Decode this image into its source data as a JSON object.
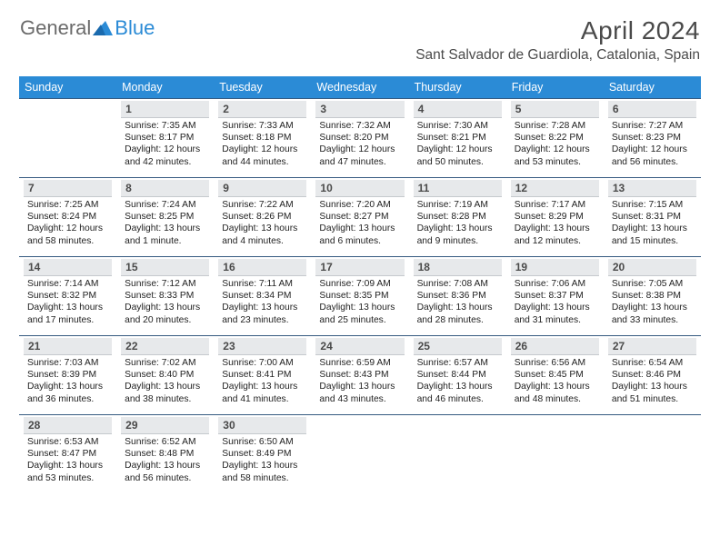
{
  "logo": {
    "gen": "General",
    "blue": "Blue"
  },
  "title": "April 2024",
  "location": "Sant Salvador de Guardiola, Catalonia, Spain",
  "colors": {
    "header_bg": "#2b8bd6",
    "header_fg": "#ffffff",
    "day_num_bg": "#e7e9eb",
    "cell_border": "#355a80",
    "logo_gray": "#6b6b6b",
    "logo_blue": "#2b8bd6",
    "title_color": "#4a4a4a"
  },
  "typography": {
    "title_size": 28,
    "location_size": 15.5,
    "weekday_size": 12.5,
    "daynum_size": 12,
    "body_size": 10.3
  },
  "weekdays": [
    "Sunday",
    "Monday",
    "Tuesday",
    "Wednesday",
    "Thursday",
    "Friday",
    "Saturday"
  ],
  "weeks": [
    [
      {
        "day": "",
        "sunrise": "",
        "sunset": "",
        "daylight": ""
      },
      {
        "day": "1",
        "sunrise": "Sunrise: 7:35 AM",
        "sunset": "Sunset: 8:17 PM",
        "daylight": "Daylight: 12 hours and 42 minutes."
      },
      {
        "day": "2",
        "sunrise": "Sunrise: 7:33 AM",
        "sunset": "Sunset: 8:18 PM",
        "daylight": "Daylight: 12 hours and 44 minutes."
      },
      {
        "day": "3",
        "sunrise": "Sunrise: 7:32 AM",
        "sunset": "Sunset: 8:20 PM",
        "daylight": "Daylight: 12 hours and 47 minutes."
      },
      {
        "day": "4",
        "sunrise": "Sunrise: 7:30 AM",
        "sunset": "Sunset: 8:21 PM",
        "daylight": "Daylight: 12 hours and 50 minutes."
      },
      {
        "day": "5",
        "sunrise": "Sunrise: 7:28 AM",
        "sunset": "Sunset: 8:22 PM",
        "daylight": "Daylight: 12 hours and 53 minutes."
      },
      {
        "day": "6",
        "sunrise": "Sunrise: 7:27 AM",
        "sunset": "Sunset: 8:23 PM",
        "daylight": "Daylight: 12 hours and 56 minutes."
      }
    ],
    [
      {
        "day": "7",
        "sunrise": "Sunrise: 7:25 AM",
        "sunset": "Sunset: 8:24 PM",
        "daylight": "Daylight: 12 hours and 58 minutes."
      },
      {
        "day": "8",
        "sunrise": "Sunrise: 7:24 AM",
        "sunset": "Sunset: 8:25 PM",
        "daylight": "Daylight: 13 hours and 1 minute."
      },
      {
        "day": "9",
        "sunrise": "Sunrise: 7:22 AM",
        "sunset": "Sunset: 8:26 PM",
        "daylight": "Daylight: 13 hours and 4 minutes."
      },
      {
        "day": "10",
        "sunrise": "Sunrise: 7:20 AM",
        "sunset": "Sunset: 8:27 PM",
        "daylight": "Daylight: 13 hours and 6 minutes."
      },
      {
        "day": "11",
        "sunrise": "Sunrise: 7:19 AM",
        "sunset": "Sunset: 8:28 PM",
        "daylight": "Daylight: 13 hours and 9 minutes."
      },
      {
        "day": "12",
        "sunrise": "Sunrise: 7:17 AM",
        "sunset": "Sunset: 8:29 PM",
        "daylight": "Daylight: 13 hours and 12 minutes."
      },
      {
        "day": "13",
        "sunrise": "Sunrise: 7:15 AM",
        "sunset": "Sunset: 8:31 PM",
        "daylight": "Daylight: 13 hours and 15 minutes."
      }
    ],
    [
      {
        "day": "14",
        "sunrise": "Sunrise: 7:14 AM",
        "sunset": "Sunset: 8:32 PM",
        "daylight": "Daylight: 13 hours and 17 minutes."
      },
      {
        "day": "15",
        "sunrise": "Sunrise: 7:12 AM",
        "sunset": "Sunset: 8:33 PM",
        "daylight": "Daylight: 13 hours and 20 minutes."
      },
      {
        "day": "16",
        "sunrise": "Sunrise: 7:11 AM",
        "sunset": "Sunset: 8:34 PM",
        "daylight": "Daylight: 13 hours and 23 minutes."
      },
      {
        "day": "17",
        "sunrise": "Sunrise: 7:09 AM",
        "sunset": "Sunset: 8:35 PM",
        "daylight": "Daylight: 13 hours and 25 minutes."
      },
      {
        "day": "18",
        "sunrise": "Sunrise: 7:08 AM",
        "sunset": "Sunset: 8:36 PM",
        "daylight": "Daylight: 13 hours and 28 minutes."
      },
      {
        "day": "19",
        "sunrise": "Sunrise: 7:06 AM",
        "sunset": "Sunset: 8:37 PM",
        "daylight": "Daylight: 13 hours and 31 minutes."
      },
      {
        "day": "20",
        "sunrise": "Sunrise: 7:05 AM",
        "sunset": "Sunset: 8:38 PM",
        "daylight": "Daylight: 13 hours and 33 minutes."
      }
    ],
    [
      {
        "day": "21",
        "sunrise": "Sunrise: 7:03 AM",
        "sunset": "Sunset: 8:39 PM",
        "daylight": "Daylight: 13 hours and 36 minutes."
      },
      {
        "day": "22",
        "sunrise": "Sunrise: 7:02 AM",
        "sunset": "Sunset: 8:40 PM",
        "daylight": "Daylight: 13 hours and 38 minutes."
      },
      {
        "day": "23",
        "sunrise": "Sunrise: 7:00 AM",
        "sunset": "Sunset: 8:41 PM",
        "daylight": "Daylight: 13 hours and 41 minutes."
      },
      {
        "day": "24",
        "sunrise": "Sunrise: 6:59 AM",
        "sunset": "Sunset: 8:43 PM",
        "daylight": "Daylight: 13 hours and 43 minutes."
      },
      {
        "day": "25",
        "sunrise": "Sunrise: 6:57 AM",
        "sunset": "Sunset: 8:44 PM",
        "daylight": "Daylight: 13 hours and 46 minutes."
      },
      {
        "day": "26",
        "sunrise": "Sunrise: 6:56 AM",
        "sunset": "Sunset: 8:45 PM",
        "daylight": "Daylight: 13 hours and 48 minutes."
      },
      {
        "day": "27",
        "sunrise": "Sunrise: 6:54 AM",
        "sunset": "Sunset: 8:46 PM",
        "daylight": "Daylight: 13 hours and 51 minutes."
      }
    ],
    [
      {
        "day": "28",
        "sunrise": "Sunrise: 6:53 AM",
        "sunset": "Sunset: 8:47 PM",
        "daylight": "Daylight: 13 hours and 53 minutes."
      },
      {
        "day": "29",
        "sunrise": "Sunrise: 6:52 AM",
        "sunset": "Sunset: 8:48 PM",
        "daylight": "Daylight: 13 hours and 56 minutes."
      },
      {
        "day": "30",
        "sunrise": "Sunrise: 6:50 AM",
        "sunset": "Sunset: 8:49 PM",
        "daylight": "Daylight: 13 hours and 58 minutes."
      },
      {
        "day": "",
        "sunrise": "",
        "sunset": "",
        "daylight": ""
      },
      {
        "day": "",
        "sunrise": "",
        "sunset": "",
        "daylight": ""
      },
      {
        "day": "",
        "sunrise": "",
        "sunset": "",
        "daylight": ""
      },
      {
        "day": "",
        "sunrise": "",
        "sunset": "",
        "daylight": ""
      }
    ]
  ]
}
